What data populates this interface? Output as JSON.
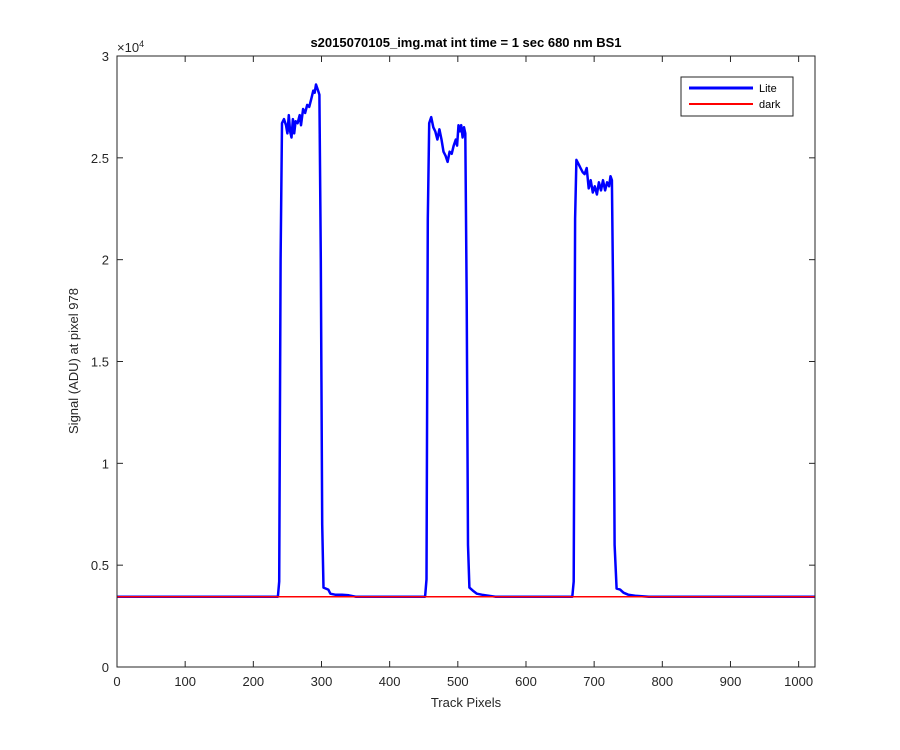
{
  "chart_data": {
    "type": "line",
    "title": "s2015070105_img.mat int time = 1 sec  680 nm BS1",
    "xlabel": "Track Pixels",
    "ylabel": "Signal (ADU) at pixel 978",
    "xlim": [
      0,
      1024
    ],
    "ylim": [
      0,
      30000
    ],
    "y_exponent_label": "×10",
    "y_exponent_power": "4",
    "xticks": [
      0,
      100,
      200,
      300,
      400,
      500,
      600,
      700,
      800,
      900,
      1000
    ],
    "xtick_labels": [
      "0",
      "100",
      "200",
      "300",
      "400",
      "500",
      "600",
      "700",
      "800",
      "900",
      "1000"
    ],
    "yticks": [
      0,
      5000,
      10000,
      15000,
      20000,
      25000,
      30000
    ],
    "ytick_labels": [
      "0",
      "0.5",
      "1",
      "1.5",
      "2",
      "2.5",
      "3"
    ],
    "grid": false,
    "legend_position": "top-right",
    "series": [
      {
        "name": "Lite",
        "color": "#0000ff",
        "points": [
          [
            0,
            3450
          ],
          [
            236,
            3450
          ],
          [
            238,
            4200
          ],
          [
            240,
            20000
          ],
          [
            242,
            26700
          ],
          [
            245,
            26900
          ],
          [
            248,
            26600
          ],
          [
            250,
            26200
          ],
          [
            252,
            27100
          ],
          [
            254,
            26300
          ],
          [
            256,
            26000
          ],
          [
            258,
            26900
          ],
          [
            260,
            26200
          ],
          [
            262,
            26800
          ],
          [
            265,
            26700
          ],
          [
            268,
            27100
          ],
          [
            270,
            26600
          ],
          [
            273,
            27400
          ],
          [
            276,
            27200
          ],
          [
            279,
            27600
          ],
          [
            282,
            27500
          ],
          [
            285,
            27900
          ],
          [
            288,
            28300
          ],
          [
            290,
            28200
          ],
          [
            292,
            28600
          ],
          [
            295,
            28300
          ],
          [
            297,
            28100
          ],
          [
            299,
            20000
          ],
          [
            301,
            7000
          ],
          [
            303,
            3900
          ],
          [
            310,
            3800
          ],
          [
            313,
            3600
          ],
          [
            320,
            3550
          ],
          [
            330,
            3550
          ],
          [
            340,
            3520
          ],
          [
            350,
            3450
          ],
          [
            452,
            3450
          ],
          [
            454,
            4300
          ],
          [
            456,
            22000
          ],
          [
            458,
            26700
          ],
          [
            461,
            27000
          ],
          [
            464,
            26500
          ],
          [
            467,
            26300
          ],
          [
            470,
            25900
          ],
          [
            473,
            26400
          ],
          [
            476,
            25900
          ],
          [
            479,
            25300
          ],
          [
            482,
            25100
          ],
          [
            485,
            24800
          ],
          [
            488,
            25300
          ],
          [
            491,
            25200
          ],
          [
            494,
            25600
          ],
          [
            497,
            25900
          ],
          [
            499,
            25600
          ],
          [
            501,
            26600
          ],
          [
            503,
            26300
          ],
          [
            505,
            26600
          ],
          [
            507,
            26000
          ],
          [
            509,
            26500
          ],
          [
            511,
            26200
          ],
          [
            513,
            18000
          ],
          [
            515,
            6000
          ],
          [
            517,
            3900
          ],
          [
            522,
            3750
          ],
          [
            528,
            3600
          ],
          [
            535,
            3550
          ],
          [
            545,
            3500
          ],
          [
            555,
            3450
          ],
          [
            668,
            3450
          ],
          [
            670,
            4200
          ],
          [
            672,
            22000
          ],
          [
            674,
            24900
          ],
          [
            677,
            24700
          ],
          [
            680,
            24500
          ],
          [
            683,
            24300
          ],
          [
            686,
            24200
          ],
          [
            689,
            24500
          ],
          [
            692,
            23500
          ],
          [
            695,
            23900
          ],
          [
            698,
            23300
          ],
          [
            701,
            23600
          ],
          [
            704,
            23200
          ],
          [
            707,
            23800
          ],
          [
            710,
            23400
          ],
          [
            713,
            23900
          ],
          [
            716,
            23400
          ],
          [
            719,
            23800
          ],
          [
            722,
            23600
          ],
          [
            724,
            24100
          ],
          [
            726,
            23900
          ],
          [
            728,
            18000
          ],
          [
            730,
            6000
          ],
          [
            733,
            3850
          ],
          [
            738,
            3800
          ],
          [
            743,
            3650
          ],
          [
            750,
            3550
          ],
          [
            760,
            3500
          ],
          [
            780,
            3450
          ],
          [
            1024,
            3450
          ]
        ]
      },
      {
        "name": "dark",
        "color": "#ff0000",
        "points": [
          [
            0,
            3450
          ],
          [
            1024,
            3450
          ]
        ]
      }
    ]
  }
}
